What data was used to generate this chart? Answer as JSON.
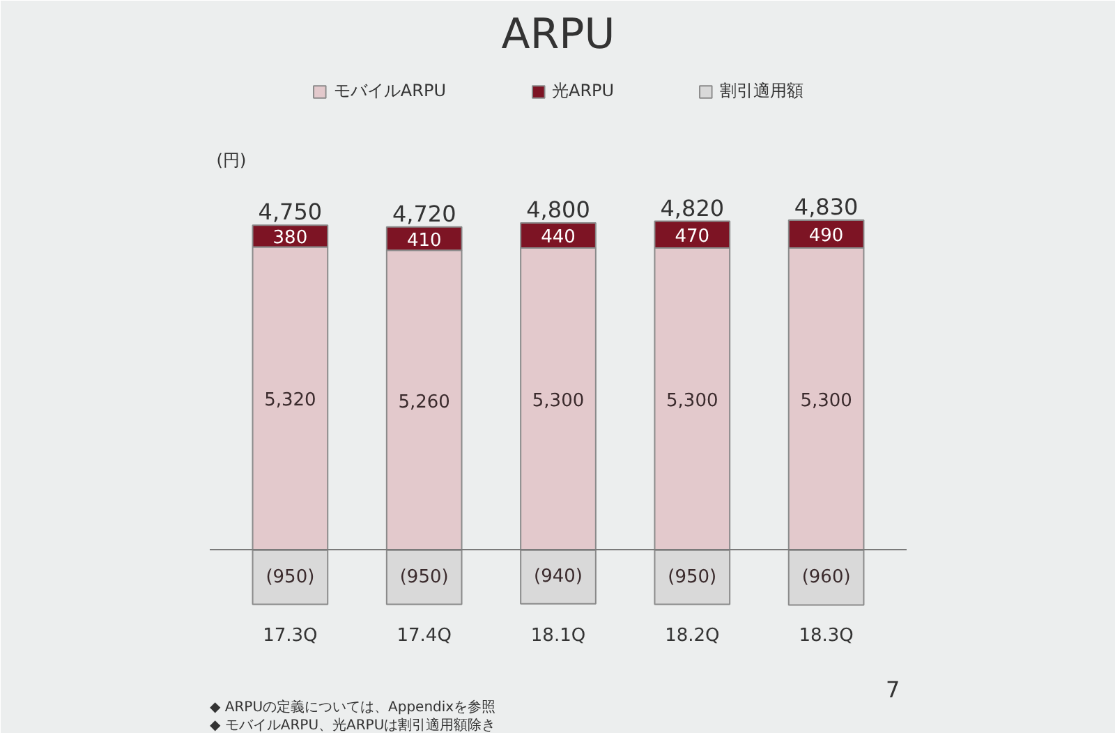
{
  "chart_data": {
    "type": "bar",
    "title": "ARPU",
    "categories": [
      "17.3Q",
      "17.4Q",
      "18.1Q",
      "18.2Q",
      "18.3Q"
    ],
    "stacked": true,
    "tick_labels": "x",
    "legend": "top",
    "series": [
      {
        "name": "モバイルARPU",
        "color": "#e3c9cc",
        "values": [
          5320,
          5260,
          5300,
          5300,
          5300
        ],
        "value_labels": [
          "5,320",
          "5,260",
          "5,300",
          "5,300",
          "5,300"
        ]
      },
      {
        "name": "光ARPU",
        "color": "#7d1424",
        "values": [
          380,
          410,
          440,
          470,
          490
        ],
        "value_labels": [
          "380",
          "410",
          "440",
          "470",
          "490"
        ]
      },
      {
        "name": "割引適用額",
        "color": "#d9d9d9",
        "values": [
          -950,
          -950,
          -940,
          -950,
          -960
        ],
        "value_labels": [
          "(950)",
          "(950)",
          "(940)",
          "(950)",
          "(960)"
        ]
      }
    ],
    "totals": [
      "4,750",
      "4,720",
      "4,800",
      "4,820",
      "4,830"
    ],
    "annotations": [
      "(円)",
      "◆ ARPUの定義については、Appendixを参照",
      "◆ モバイルARPU、光ARPUは割引適用額除き",
      "7"
    ]
  }
}
